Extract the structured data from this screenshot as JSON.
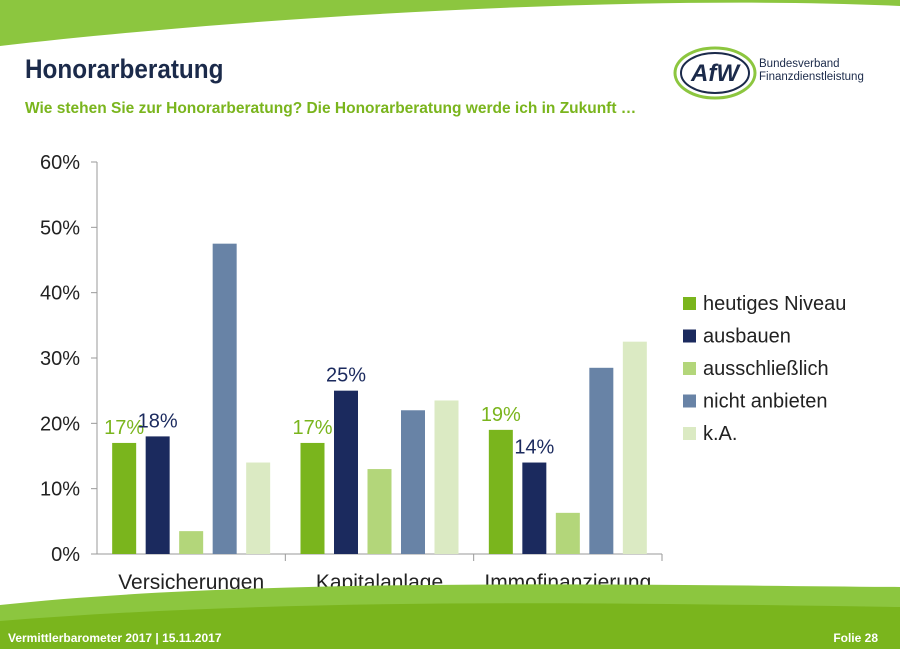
{
  "slide": {
    "title": "Honorarberatung",
    "subtitle": "Wie stehen Sie zur Honorarberatung? Die Honorarberatung werde ich in Zukunft …",
    "footer_left": "Vermittlerbarometer 2017 | 15.11.2017",
    "footer_right": "Folie 28"
  },
  "logo": {
    "mark": "AfW",
    "line1": "Bundesverband",
    "line2": "Finanzdienstleistung"
  },
  "colors": {
    "green_dark": "#7ab51d",
    "green_band": "#8cc63f",
    "navy": "#1b2a5e",
    "light_green": "#b3d67a",
    "slate_blue": "#6883a6",
    "pale_green": "#dbeac3"
  },
  "chart_data": {
    "type": "bar",
    "categories": [
      "Versicherungen",
      "Kapitalanlage",
      "Immofinanzierung"
    ],
    "series": [
      {
        "name": "heutiges Niveau",
        "color": "#7ab51d",
        "values": [
          17,
          17,
          19
        ],
        "labels": [
          "17%",
          "17%",
          "19%"
        ],
        "label_color": "#7ab51d"
      },
      {
        "name": "ausbauen",
        "color": "#1b2a5e",
        "values": [
          18,
          25,
          14
        ],
        "labels": [
          "18%",
          "25%",
          "14%"
        ],
        "label_color": "#1b2a5e"
      },
      {
        "name": "ausschließlich",
        "color": "#b3d67a",
        "values": [
          3.5,
          13,
          6.3
        ],
        "labels": [
          "",
          "",
          ""
        ]
      },
      {
        "name": "nicht anbieten",
        "color": "#6883a6",
        "values": [
          47.5,
          22,
          28.5
        ],
        "labels": [
          "",
          "",
          ""
        ]
      },
      {
        "name": "k.A.",
        "color": "#dbeac3",
        "values": [
          14,
          23.5,
          32.5
        ],
        "labels": [
          "",
          "",
          ""
        ]
      }
    ],
    "y_ticks": [
      "0%",
      "10%",
      "20%",
      "30%",
      "40%",
      "50%",
      "60%"
    ],
    "ylim": [
      0,
      60
    ],
    "legend_position": "right",
    "grid": false
  }
}
